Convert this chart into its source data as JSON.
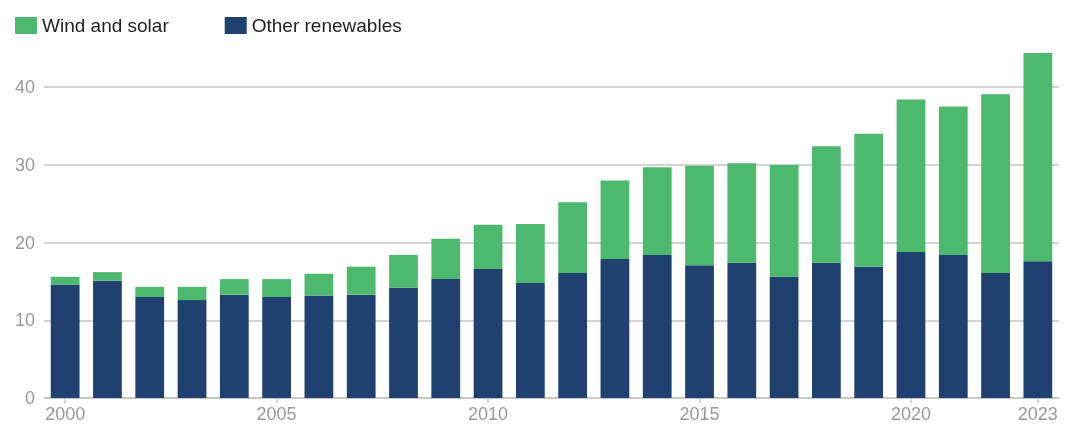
{
  "chart_data": {
    "type": "bar",
    "stacked": true,
    "categories": [
      "2000",
      null,
      null,
      null,
      null,
      "2005",
      null,
      null,
      null,
      null,
      "2010",
      null,
      null,
      null,
      null,
      "2015",
      null,
      null,
      null,
      null,
      "2020",
      null,
      null,
      "2023"
    ],
    "series": [
      {
        "name": "Other renewables",
        "color": "#20406f",
        "values": [
          14.6,
          15.1,
          13.0,
          12.6,
          13.3,
          13.0,
          13.2,
          13.3,
          14.2,
          15.3,
          16.6,
          14.8,
          16.1,
          17.9,
          18.4,
          17.1,
          17.4,
          15.6,
          17.4,
          16.9,
          18.8,
          18.4,
          16.1,
          17.6
        ]
      },
      {
        "name": "Wind and solar",
        "color": "#4cb96f",
        "values": [
          1.0,
          1.1,
          1.3,
          1.7,
          2.0,
          2.3,
          2.8,
          3.6,
          4.2,
          5.2,
          5.7,
          7.6,
          9.1,
          10.1,
          11.3,
          12.8,
          12.8,
          14.4,
          15.0,
          17.1,
          19.6,
          19.1,
          23.0,
          26.8
        ]
      }
    ],
    "ylim": [
      0,
      44.4
    ],
    "yticks": [
      0,
      10,
      20,
      30,
      40
    ],
    "grid": "y",
    "legend": "top left"
  }
}
